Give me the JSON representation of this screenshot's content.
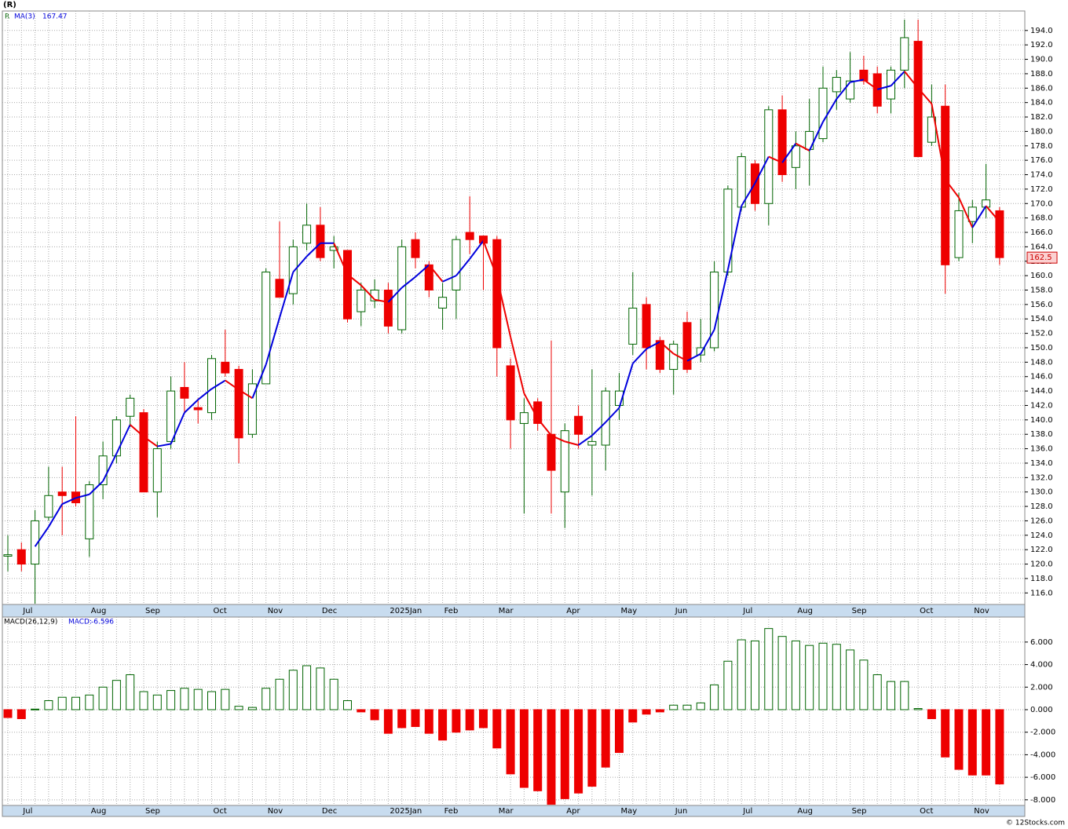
{
  "title": "(R)",
  "footer": "© 12Stocks.com",
  "chart_data": [
    {
      "type": "candlestick",
      "ticker": "R",
      "ma_name": "MA(3)",
      "categories": [
        null,
        "Jul",
        null,
        null,
        null,
        null,
        "Aug",
        null,
        null,
        null,
        "Sep",
        null,
        null,
        null,
        null,
        "Oct",
        null,
        null,
        null,
        "Nov",
        null,
        null,
        null,
        "Dec",
        null,
        null,
        null,
        null,
        "2025Jan",
        null,
        null,
        null,
        "Feb",
        null,
        null,
        null,
        "Mar",
        null,
        null,
        null,
        null,
        "Apr",
        null,
        null,
        null,
        "May",
        null,
        null,
        null,
        "Jun",
        null,
        null,
        null,
        null,
        "Jul",
        null,
        null,
        null,
        "Aug",
        null,
        null,
        null,
        "Sep",
        null,
        null,
        null,
        null,
        "Oct",
        null,
        null,
        null,
        "Nov",
        null,
        null
      ],
      "open": [
        121.1,
        122,
        120,
        126.5,
        130,
        130,
        123.5,
        131,
        135,
        140.5,
        141,
        130,
        137,
        144.5,
        141.7,
        141,
        148,
        147,
        138,
        145,
        159.5,
        157.5,
        164.5,
        167,
        163.5,
        163.5,
        155,
        156.5,
        158,
        152.5,
        165,
        161.5,
        155.5,
        158,
        166,
        165.5,
        165,
        147.5,
        139.5,
        142.5,
        138,
        130,
        140.5,
        136.5,
        136.5,
        142,
        150.5,
        156,
        151,
        147,
        153.5,
        149,
        150,
        160.5,
        169.5,
        175.5,
        170,
        183,
        175,
        177.5,
        179,
        185.5,
        184.5,
        188.5,
        188,
        184.5,
        188.5,
        192.5,
        178.5,
        183.5,
        162.5,
        167.5,
        169.5,
        169
      ],
      "high": [
        124,
        123,
        127.5,
        133.5,
        133.5,
        140.5,
        131.5,
        137,
        140.5,
        143.5,
        141.5,
        137,
        146,
        148,
        143,
        149,
        152.5,
        147.5,
        147,
        161,
        167.5,
        165,
        170,
        169.5,
        165.5,
        163.5,
        159,
        159.5,
        159,
        165,
        166,
        162,
        159,
        165.5,
        171,
        165.5,
        165.5,
        148.5,
        143,
        143,
        151,
        139.5,
        142,
        147,
        144.5,
        146.5,
        160.5,
        157,
        151.5,
        151,
        155,
        154,
        162,
        172.5,
        177,
        176,
        183.5,
        185,
        180,
        184.5,
        189,
        188.5,
        191,
        190.5,
        189,
        189,
        195.5,
        195.5,
        186.5,
        186.5,
        171.5,
        170.5,
        175.5,
        169.5
      ],
      "low": [
        119,
        119,
        114.5,
        126,
        124,
        128,
        121,
        129,
        134,
        139,
        130,
        126.5,
        136,
        141,
        139.5,
        140,
        146,
        134,
        137.5,
        145,
        157,
        156,
        163.5,
        162,
        161,
        153.5,
        153,
        155.5,
        152,
        152,
        161,
        157,
        152.5,
        154,
        163,
        158,
        146,
        136,
        127,
        138.5,
        127,
        125,
        136,
        129.5,
        133,
        140,
        149,
        147,
        146.5,
        143.5,
        146.5,
        148,
        149.5,
        160,
        169,
        169,
        167,
        173,
        172,
        172.5,
        178.5,
        183,
        184,
        186.5,
        182.5,
        182.5,
        186,
        176.5,
        178,
        157.5,
        162,
        164.5,
        168,
        161.5
      ],
      "close": [
        121.3,
        120,
        126,
        129.5,
        129.5,
        128.5,
        131,
        135,
        140,
        143,
        130,
        136,
        144,
        143,
        141.4,
        148.5,
        146.5,
        137.5,
        145,
        160.5,
        157,
        164,
        167,
        162.5,
        164,
        154,
        158,
        158,
        153,
        164,
        162.5,
        158,
        157,
        165,
        165,
        164.5,
        150,
        140,
        141,
        139.5,
        133,
        138.5,
        138,
        137,
        144,
        144,
        155.5,
        150,
        147,
        150.5,
        147,
        150,
        160.5,
        172,
        176.5,
        170,
        183,
        174,
        178,
        180,
        186,
        187.5,
        187,
        187,
        183.5,
        188.5,
        193,
        176.5,
        182,
        161.5,
        169,
        169.5,
        170.5,
        162.5
      ],
      "ma3": [
        null,
        null,
        122.43,
        125.17,
        128.33,
        129.17,
        129.67,
        131.5,
        135.33,
        139.33,
        137.67,
        136.33,
        136.67,
        141,
        142.8,
        144.3,
        145.47,
        144.17,
        143,
        147.67,
        154.17,
        160.5,
        162.67,
        164.5,
        164.5,
        160.17,
        158.67,
        156.67,
        156.33,
        158.33,
        159.83,
        161.5,
        159.17,
        160,
        162.33,
        164.83,
        159.83,
        151.5,
        143.67,
        140.17,
        137.83,
        137,
        136.5,
        137.83,
        139.67,
        141.67,
        147.83,
        149.83,
        150.83,
        149.17,
        148.17,
        149.17,
        152.5,
        160.83,
        169.67,
        172.83,
        176.5,
        175.67,
        178.33,
        177.33,
        181.33,
        184.5,
        186.83,
        187.17,
        185.83,
        186.33,
        188.33,
        186,
        183.83,
        173.33,
        170.83,
        166.67,
        169.67,
        167.47
      ],
      "up_color": "#006400",
      "down_color": "#ee0000",
      "ma_up_color": "#0000dd",
      "ma_down_color": "#ee0000",
      "ylim": [
        114.4,
        196.7
      ],
      "yticks": [
        {
          "value": 116,
          "label": "116.0"
        },
        {
          "value": 118,
          "label": "118.0"
        },
        {
          "value": 120,
          "label": "120.0"
        },
        {
          "value": 122,
          "label": "122.0"
        },
        {
          "value": 124,
          "label": "124.0"
        },
        {
          "value": 126,
          "label": "126.0"
        },
        {
          "value": 128,
          "label": "128.0"
        },
        {
          "value": 130,
          "label": "130.0"
        },
        {
          "value": 132,
          "label": "132.0"
        },
        {
          "value": 134,
          "label": "134.0"
        },
        {
          "value": 136,
          "label": "136.0"
        },
        {
          "value": 138,
          "label": "138.0"
        },
        {
          "value": 140,
          "label": "140.0"
        },
        {
          "value": 142,
          "label": "142.0"
        },
        {
          "value": 144,
          "label": "144.0"
        },
        {
          "value": 146,
          "label": "146.0"
        },
        {
          "value": 148,
          "label": "148.0"
        },
        {
          "value": 150,
          "label": "150.0"
        },
        {
          "value": 152,
          "label": "152.0"
        },
        {
          "value": 154,
          "label": "154.0"
        },
        {
          "value": 156,
          "label": "156.0"
        },
        {
          "value": 158,
          "label": "158.0"
        },
        {
          "value": 160,
          "label": "160.0"
        },
        {
          "value": 162,
          "label": "162.0"
        },
        {
          "value": 164,
          "label": "164.0"
        },
        {
          "value": 166,
          "label": "166.0"
        },
        {
          "value": 168,
          "label": "168.0"
        },
        {
          "value": 170,
          "label": "170.0"
        },
        {
          "value": 172,
          "label": "172.0"
        },
        {
          "value": 174,
          "label": "174.0"
        },
        {
          "value": 176,
          "label": "176.0"
        },
        {
          "value": 178,
          "label": "178.0"
        },
        {
          "value": 180,
          "label": "180.0"
        },
        {
          "value": 182,
          "label": "182.0"
        },
        {
          "value": 184,
          "label": "184.0"
        },
        {
          "value": 186,
          "label": "186.0"
        },
        {
          "value": 188,
          "label": "188.0"
        },
        {
          "value": 190,
          "label": "190.0"
        },
        {
          "value": 192,
          "label": "192.0"
        },
        {
          "value": 194,
          "label": "194.0"
        }
      ],
      "grid": true
    },
    {
      "type": "bar",
      "name": "MACD(26,12,9)",
      "value_name": "MACD:",
      "categories": [
        null,
        "Jul",
        null,
        null,
        null,
        null,
        "Aug",
        null,
        null,
        null,
        "Sep",
        null,
        null,
        null,
        null,
        "Oct",
        null,
        null,
        null,
        "Nov",
        null,
        null,
        null,
        "Dec",
        null,
        null,
        null,
        null,
        "2025Jan",
        null,
        null,
        null,
        "Feb",
        null,
        null,
        null,
        "Mar",
        null,
        null,
        null,
        null,
        "Apr",
        null,
        null,
        null,
        "May",
        null,
        null,
        null,
        "Jun",
        null,
        null,
        null,
        null,
        "Jul",
        null,
        null,
        null,
        "Aug",
        null,
        null,
        null,
        "Sep",
        null,
        null,
        null,
        null,
        "Oct",
        null,
        null,
        null,
        "Nov",
        null,
        null
      ],
      "values": [
        -0.7,
        -0.8,
        0.05,
        0.8,
        1.1,
        1.1,
        1.3,
        2.0,
        2.6,
        3.1,
        1.6,
        1.3,
        1.7,
        1.9,
        1.8,
        1.6,
        1.8,
        0.3,
        0.2,
        1.9,
        2.7,
        3.5,
        3.9,
        3.7,
        2.7,
        0.8,
        -0.2,
        -0.9,
        -2.1,
        -1.6,
        -1.5,
        -2.1,
        -2.7,
        -2.0,
        -1.8,
        -1.6,
        -3.4,
        -5.7,
        -6.9,
        -7.2,
        -8.4,
        -7.9,
        -7.4,
        -6.8,
        -5.1,
        -3.8,
        -1.1,
        -0.4,
        -0.2,
        0.4,
        0.4,
        0.6,
        2.2,
        4.3,
        6.2,
        6.1,
        7.2,
        6.5,
        6.1,
        5.7,
        5.9,
        5.8,
        5.3,
        4.4,
        3.1,
        2.5,
        2.5,
        0.1,
        -0.8,
        -4.2,
        -5.3,
        -5.8,
        -5.8,
        -6.596
      ],
      "up_color": "#006400",
      "down_color": "#ee0000",
      "ylim": [
        -8.5,
        8.22
      ],
      "yticks": [
        {
          "value": -8,
          "label": "-8.000"
        },
        {
          "value": -6,
          "label": "-6.000"
        },
        {
          "value": -4,
          "label": "-4.000"
        },
        {
          "value": -2,
          "label": "-2.000"
        },
        {
          "value": 0,
          "label": "0.000"
        },
        {
          "value": 2,
          "label": "2.000"
        },
        {
          "value": 4,
          "label": "4.000"
        },
        {
          "value": 6,
          "label": "6.000"
        }
      ],
      "grid": true
    }
  ]
}
